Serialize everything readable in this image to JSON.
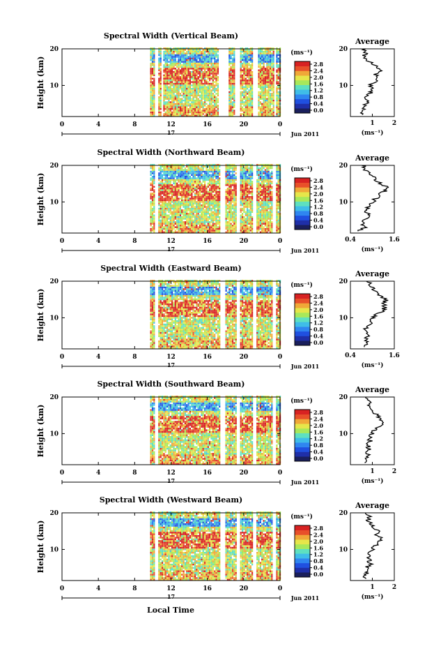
{
  "figure": {
    "x_label": "Local Time",
    "date_label": "Jun 2011",
    "day_label": "17",
    "colorbar_unit": "(ms⁻¹)",
    "colorbar_ticks": [
      "0.0",
      "0.4",
      "0.8",
      "1.2",
      "1.6",
      "2.0",
      "2.4",
      "2.8"
    ],
    "colorbar_colors": [
      "#1a1f5c",
      "#1f2fa8",
      "#2050e0",
      "#2f86f0",
      "#3fbde8",
      "#5ee0c0",
      "#a8e85a",
      "#e6e64a",
      "#f0a838",
      "#e8502a",
      "#d82222"
    ],
    "average_title": "Average",
    "average_unit": "(ms⁻¹)"
  },
  "chart_data": [
    {
      "type": "heatmap",
      "title": "Spectral Width (Vertical Beam)",
      "ylabel": "Height (km)",
      "xlabel": "Local Time",
      "x_ticks": [
        "0",
        "4",
        "8",
        "12",
        "16",
        "20",
        "0"
      ],
      "y_ticks": [
        "20",
        "10"
      ],
      "xlim": [
        0,
        24
      ],
      "ylim": [
        1.5,
        20
      ],
      "colorbar": {
        "label": "(ms⁻¹)",
        "range": [
          0,
          2.8
        ]
      },
      "data_start_hour": 9.7,
      "gaps_hours": [
        [
          10.2,
          10.5
        ],
        [
          10.9,
          11.1
        ],
        [
          17.2,
          18.2
        ],
        [
          19.0,
          19.5
        ],
        [
          21.0,
          21.4
        ],
        [
          23.2,
          23.5
        ]
      ],
      "average_profile": {
        "xlim": [
          0,
          2
        ],
        "x_ticks": [
          "1",
          "2"
        ],
        "y_ticks": [
          "20",
          "10"
        ],
        "height_km": [
          2,
          3,
          4,
          5,
          6,
          7,
          8,
          9,
          10,
          11,
          12,
          13,
          14,
          15,
          16,
          17,
          18,
          19,
          20
        ],
        "width_ms": [
          0.5,
          0.6,
          0.5,
          0.7,
          0.8,
          0.7,
          0.9,
          1.0,
          0.9,
          1.1,
          1.3,
          1.1,
          1.5,
          1.2,
          1.0,
          0.7,
          0.6,
          0.7,
          0.6
        ]
      }
    },
    {
      "type": "heatmap",
      "title": "Spectral Width (Northward Beam)",
      "ylabel": "Height (km)",
      "xlabel": "Local Time",
      "x_ticks": [
        "0",
        "4",
        "8",
        "12",
        "16",
        "20",
        "0"
      ],
      "y_ticks": [
        "20",
        "10"
      ],
      "xlim": [
        0,
        24
      ],
      "ylim": [
        1.5,
        20
      ],
      "colorbar": {
        "label": "(ms⁻¹)",
        "range": [
          0,
          2.8
        ]
      },
      "data_start_hour": 9.7,
      "gaps_hours": [
        [
          10.2,
          10.5
        ],
        [
          17.4,
          17.8
        ],
        [
          19.2,
          19.5
        ],
        [
          21.0,
          21.3
        ],
        [
          23.1,
          23.4
        ]
      ],
      "average_profile": {
        "xlim": [
          0.4,
          1.6
        ],
        "x_ticks": [
          "0.4",
          "1.6"
        ],
        "y_ticks": [
          "20",
          "10"
        ],
        "height_km": [
          2,
          3,
          4,
          5,
          6,
          7,
          8,
          9,
          10,
          11,
          12,
          13,
          14,
          15,
          16,
          17,
          18,
          19,
          20
        ],
        "width_ms": [
          0.6,
          0.8,
          0.7,
          0.75,
          0.9,
          0.85,
          0.8,
          0.95,
          1.0,
          1.1,
          1.2,
          1.35,
          1.4,
          1.2,
          1.1,
          1.0,
          0.9,
          0.8,
          0.75
        ]
      }
    },
    {
      "type": "heatmap",
      "title": "Spectral Width (Eastward Beam)",
      "ylabel": "Height (km)",
      "xlabel": "Local Time",
      "x_ticks": [
        "0",
        "4",
        "8",
        "12",
        "16",
        "20",
        "0"
      ],
      "y_ticks": [
        "20",
        "10"
      ],
      "xlim": [
        0,
        24
      ],
      "ylim": [
        1.5,
        20
      ],
      "colorbar": {
        "label": "(ms⁻¹)",
        "range": [
          0,
          2.8
        ]
      },
      "data_start_hour": 9.7,
      "gaps_hours": [
        [
          10.2,
          10.5
        ],
        [
          17.4,
          17.8
        ],
        [
          19.2,
          19.5
        ],
        [
          21.0,
          21.3
        ],
        [
          23.1,
          23.4
        ]
      ],
      "average_profile": {
        "xlim": [
          0.4,
          1.6
        ],
        "x_ticks": [
          "0.4",
          "1.6"
        ],
        "y_ticks": [
          "20",
          "10"
        ],
        "height_km": [
          2,
          3,
          4,
          5,
          6,
          7,
          8,
          9,
          10,
          11,
          12,
          13,
          14,
          15,
          16,
          17,
          18,
          19,
          20
        ],
        "width_ms": [
          0.8,
          0.85,
          0.8,
          0.9,
          0.85,
          0.8,
          0.9,
          0.95,
          1.0,
          1.1,
          1.3,
          1.35,
          1.3,
          1.4,
          1.2,
          1.1,
          1.0,
          0.95,
          0.9
        ]
      }
    },
    {
      "type": "heatmap",
      "title": "Spectral Width (Southward Beam)",
      "ylabel": "Height (km)",
      "xlabel": "Local Time",
      "x_ticks": [
        "0",
        "4",
        "8",
        "12",
        "16",
        "20",
        "0"
      ],
      "y_ticks": [
        "20",
        "10"
      ],
      "xlim": [
        0,
        24
      ],
      "ylim": [
        1.5,
        20
      ],
      "colorbar": {
        "label": "(ms⁻¹)",
        "range": [
          0,
          2.8
        ]
      },
      "data_start_hour": 9.7,
      "gaps_hours": [
        [
          10.2,
          10.5
        ],
        [
          17.4,
          17.8
        ],
        [
          19.2,
          19.5
        ],
        [
          21.0,
          21.3
        ],
        [
          23.1,
          23.4
        ]
      ],
      "average_profile": {
        "xlim": [
          0,
          2
        ],
        "x_ticks": [
          "1",
          "2"
        ],
        "y_ticks": [
          "20",
          "10"
        ],
        "height_km": [
          2,
          3,
          4,
          5,
          6,
          7,
          8,
          9,
          10,
          11,
          12,
          13,
          14,
          15,
          16,
          17,
          18,
          19,
          20
        ],
        "width_ms": [
          0.7,
          0.75,
          0.8,
          0.75,
          0.85,
          0.8,
          0.9,
          0.85,
          1.0,
          1.1,
          1.4,
          1.6,
          1.4,
          1.2,
          1.1,
          0.9,
          0.8,
          0.85,
          0.75
        ]
      }
    },
    {
      "type": "heatmap",
      "title": "Spectral Width (Westward Beam)",
      "ylabel": "Height (km)",
      "xlabel": "Local Time",
      "x_ticks": [
        "0",
        "4",
        "8",
        "12",
        "16",
        "20",
        "0"
      ],
      "y_ticks": [
        "20",
        "10"
      ],
      "xlim": [
        0,
        24
      ],
      "ylim": [
        1.5,
        20
      ],
      "colorbar": {
        "label": "(ms⁻¹)",
        "range": [
          0,
          2.8
        ]
      },
      "data_start_hour": 9.7,
      "gaps_hours": [
        [
          10.2,
          10.5
        ],
        [
          17.4,
          17.8
        ],
        [
          19.2,
          19.5
        ],
        [
          21.0,
          21.3
        ],
        [
          23.1,
          23.4
        ]
      ],
      "average_profile": {
        "xlim": [
          0,
          2
        ],
        "x_ticks": [
          "1",
          "2"
        ],
        "y_ticks": [
          "20",
          "10"
        ],
        "height_km": [
          2,
          3,
          4,
          5,
          6,
          7,
          8,
          9,
          10,
          11,
          12,
          13,
          14,
          15,
          16,
          17,
          18,
          19,
          20
        ],
        "width_ms": [
          0.6,
          0.7,
          0.8,
          0.75,
          0.9,
          0.85,
          0.8,
          0.9,
          1.0,
          1.1,
          1.3,
          1.4,
          1.2,
          1.3,
          1.1,
          0.9,
          0.8,
          0.9,
          0.7
        ]
      }
    }
  ]
}
